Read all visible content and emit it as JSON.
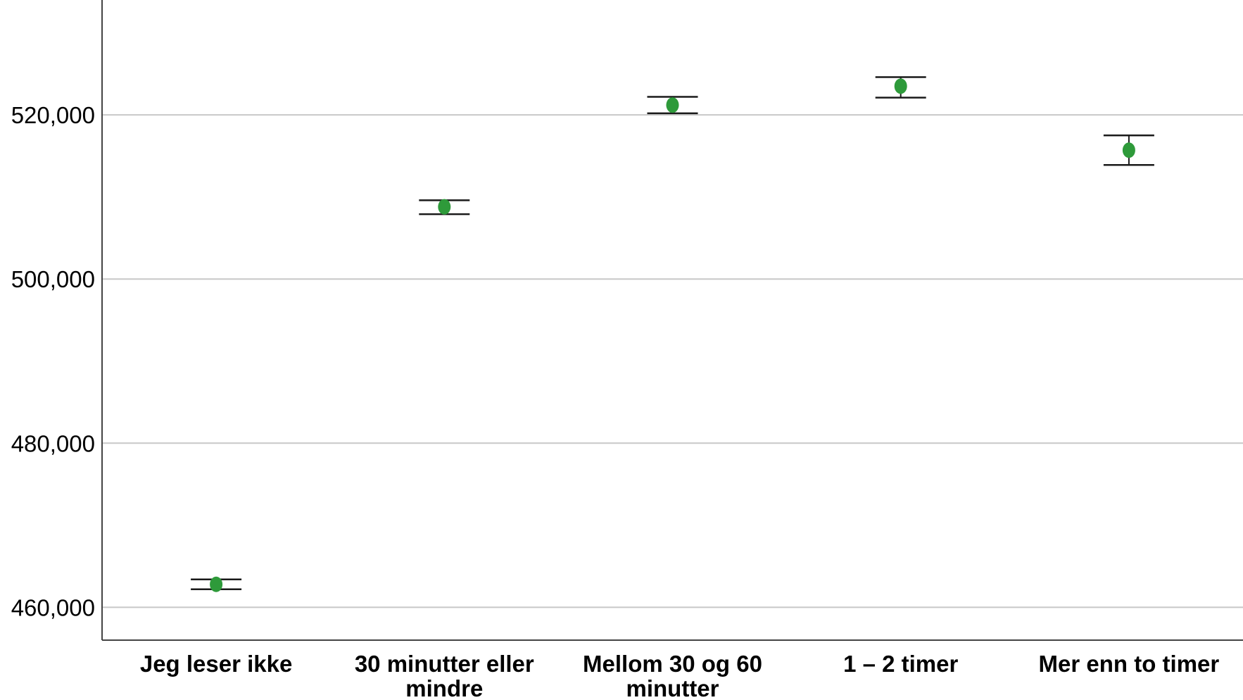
{
  "chart_data": {
    "type": "scatter",
    "categories": [
      [
        "Jeg leser ikke"
      ],
      [
        "30 minutter eller",
        "mindre"
      ],
      [
        "Mellom 30 og 60",
        "minutter"
      ],
      [
        "1 – 2 timer"
      ],
      [
        "Mer enn to timer"
      ]
    ],
    "values": [
      462.8,
      508.8,
      521.2,
      523.5,
      515.7
    ],
    "error_low": [
      462.2,
      507.9,
      520.2,
      522.1,
      513.9
    ],
    "error_high": [
      463.4,
      509.6,
      522.2,
      524.6,
      517.5
    ],
    "ylim": [
      456.0,
      534.0
    ],
    "yticks": [
      460,
      480,
      500,
      520
    ],
    "ytick_labels": [
      "460,000",
      "480,000",
      "500,000",
      "520,000"
    ],
    "title": "",
    "xlabel": "",
    "ylabel": "",
    "grid": "horizontal",
    "marker_color": "#2e9a3a",
    "errorbar_color": "#1a1a1a",
    "grid_color": "#c8c8c8"
  }
}
